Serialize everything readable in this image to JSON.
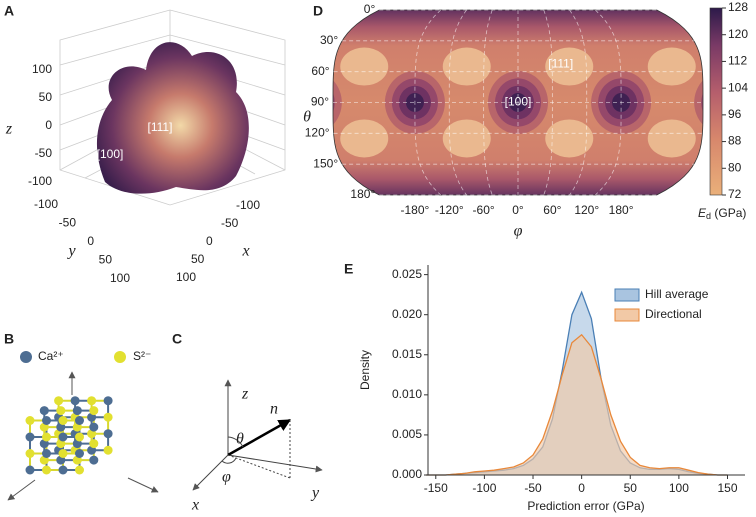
{
  "panels": [
    "A",
    "B",
    "C",
    "D",
    "E"
  ],
  "chart_data": [
    {
      "type": "surface3d",
      "zticks": [
        100,
        50,
        0,
        -50,
        -100
      ],
      "yticks": [
        -100,
        -50,
        0,
        50,
        100
      ],
      "xticks": [
        -100,
        -50,
        0,
        50,
        100
      ],
      "zlabel": "z",
      "ylabel": "y",
      "xlabel": "x",
      "annotations": [
        "[111]",
        "[100]"
      ]
    },
    {
      "type": "map",
      "xlim": [
        -323,
        323
      ],
      "ylim": [
        0,
        180
      ],
      "yticks": [
        {
          "value": 0,
          "label": "0°"
        },
        {
          "value": 30,
          "label": "30°"
        },
        {
          "value": 60,
          "label": "60°"
        },
        {
          "value": 90,
          "label": "90°"
        },
        {
          "value": 120,
          "label": "120°"
        },
        {
          "value": 150,
          "label": "150°"
        },
        {
          "value": 180,
          "label": "180°"
        }
      ],
      "xticks": [
        {
          "value": -180,
          "label": "-180°"
        },
        {
          "value": -120,
          "label": "-120°"
        },
        {
          "value": -60,
          "label": "-60°"
        },
        {
          "value": 0,
          "label": "0°"
        },
        {
          "value": 60,
          "label": "60°"
        },
        {
          "value": 120,
          "label": "120°"
        },
        {
          "value": 180,
          "label": "180°"
        }
      ],
      "xlabel": "φ",
      "ylabel": "θ",
      "clim": [
        72,
        128
      ],
      "cticks": [
        72,
        80,
        88,
        96,
        104,
        112,
        120,
        128
      ],
      "colorbar_label": {
        "symbol": "E",
        "subscript": "d",
        "unit": " (GPa)"
      },
      "annotations": [
        "[100]",
        "[111]"
      ]
    },
    {
      "type": "density",
      "xlabel": "Prediction error (GPa)",
      "ylabel": "Density",
      "xlim": [
        -158,
        168
      ],
      "ylim": [
        0,
        0.0262
      ],
      "xticks": [
        -150,
        -100,
        -50,
        0,
        50,
        100,
        150
      ],
      "yticks": [
        {
          "value": 0,
          "label": "0.000"
        },
        0.005,
        {
          "value": 0.01,
          "label": "0.010"
        },
        0.015,
        {
          "value": 0.02,
          "label": "0.020"
        },
        0.025
      ],
      "legend": "upper right",
      "x": [
        -160,
        -150,
        -140,
        -130,
        -120,
        -110,
        -100,
        -90,
        -80,
        -70,
        -60,
        -50,
        -40,
        -30,
        -20,
        -10,
        0,
        10,
        20,
        30,
        40,
        50,
        60,
        70,
        80,
        90,
        100,
        110,
        120,
        130,
        140,
        150
      ],
      "series": [
        {
          "name": "Hill average",
          "color": "#4a7fb5",
          "fill": "#a9c4e0",
          "values": [
            0,
            0,
            0,
            0.0001,
            0.0002,
            0.0003,
            0.0004,
            0.0005,
            0.0006,
            0.0008,
            0.0012,
            0.002,
            0.0035,
            0.007,
            0.013,
            0.02,
            0.0228,
            0.0195,
            0.012,
            0.0062,
            0.003,
            0.0015,
            0.0009,
            0.0007,
            0.0007,
            0.0008,
            0.0007,
            0.0004,
            0.0002,
            0.0001,
            0,
            0
          ]
        },
        {
          "name": "Directional",
          "color": "#e8883a",
          "fill": "#f2c9a6",
          "values": [
            0,
            0,
            0,
            0.0001,
            0.0002,
            0.0004,
            0.0005,
            0.0006,
            0.0008,
            0.001,
            0.0015,
            0.0025,
            0.0045,
            0.008,
            0.0125,
            0.0165,
            0.0175,
            0.016,
            0.012,
            0.0075,
            0.0042,
            0.0022,
            0.0012,
            0.0009,
            0.0008,
            0.0009,
            0.0009,
            0.0006,
            0.0003,
            0.0001,
            0,
            0
          ]
        }
      ]
    }
  ],
  "crystal": {
    "legend": [
      "Ca²⁺",
      "S²⁻"
    ]
  },
  "coordinates": {
    "labels": [
      "z",
      "n",
      "θ",
      "x",
      "φ",
      "y"
    ]
  }
}
